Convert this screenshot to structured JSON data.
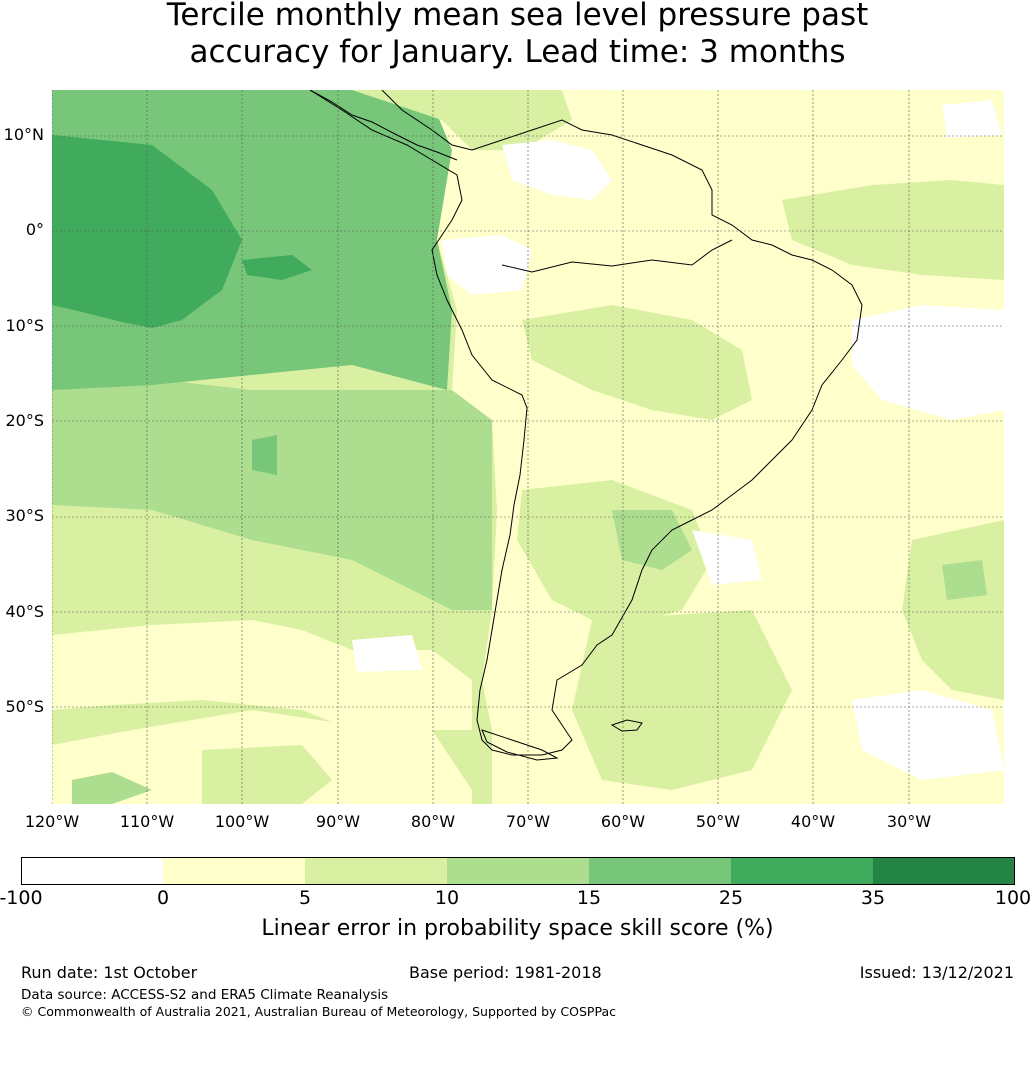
{
  "title": {
    "line1": "Tercile monthly mean sea level pressure past",
    "line2": "accuracy for January. Lead time: 3 months"
  },
  "map": {
    "lat_labels": [
      "10°N",
      "0°",
      "10°S",
      "20°S",
      "30°S",
      "40°S",
      "50°S"
    ],
    "lon_labels": [
      "120°W",
      "110°W",
      "100°W",
      "90°W",
      "80°W",
      "70°W",
      "60°W",
      "50°W",
      "40°W",
      "30°W"
    ],
    "colors": {
      "ocean_base": "#d9f0a3",
      "white": "#ffffff",
      "c0_5": "#ffffcc",
      "c5_10": "#d9f0a3",
      "c10_15": "#addd8e",
      "c15_25": "#78c679",
      "c25_35": "#41ab5d",
      "c35_100": "#238443",
      "coast": "#000000",
      "grid": "#555555"
    }
  },
  "colorbar": {
    "ticks": [
      "-100",
      "0",
      "5",
      "10",
      "15",
      "25",
      "35",
      "100"
    ],
    "segments": [
      "#ffffff",
      "#ffffcc",
      "#d9f0a3",
      "#addd8e",
      "#78c679",
      "#41ab5d",
      "#238443"
    ],
    "label": "Linear error in probability space skill score (%)"
  },
  "footer": {
    "run_date": "Run date: 1st October",
    "base_period": "Base period: 1981-2018",
    "issued": "Issued: 13/12/2021",
    "data_source": "Data source: ACCESS-S2 and ERA5 Climate Reanalysis",
    "copyright": "© Commonwealth of Australia 2021, Australian Bureau of Meteorology, Supported by COSPPac"
  }
}
